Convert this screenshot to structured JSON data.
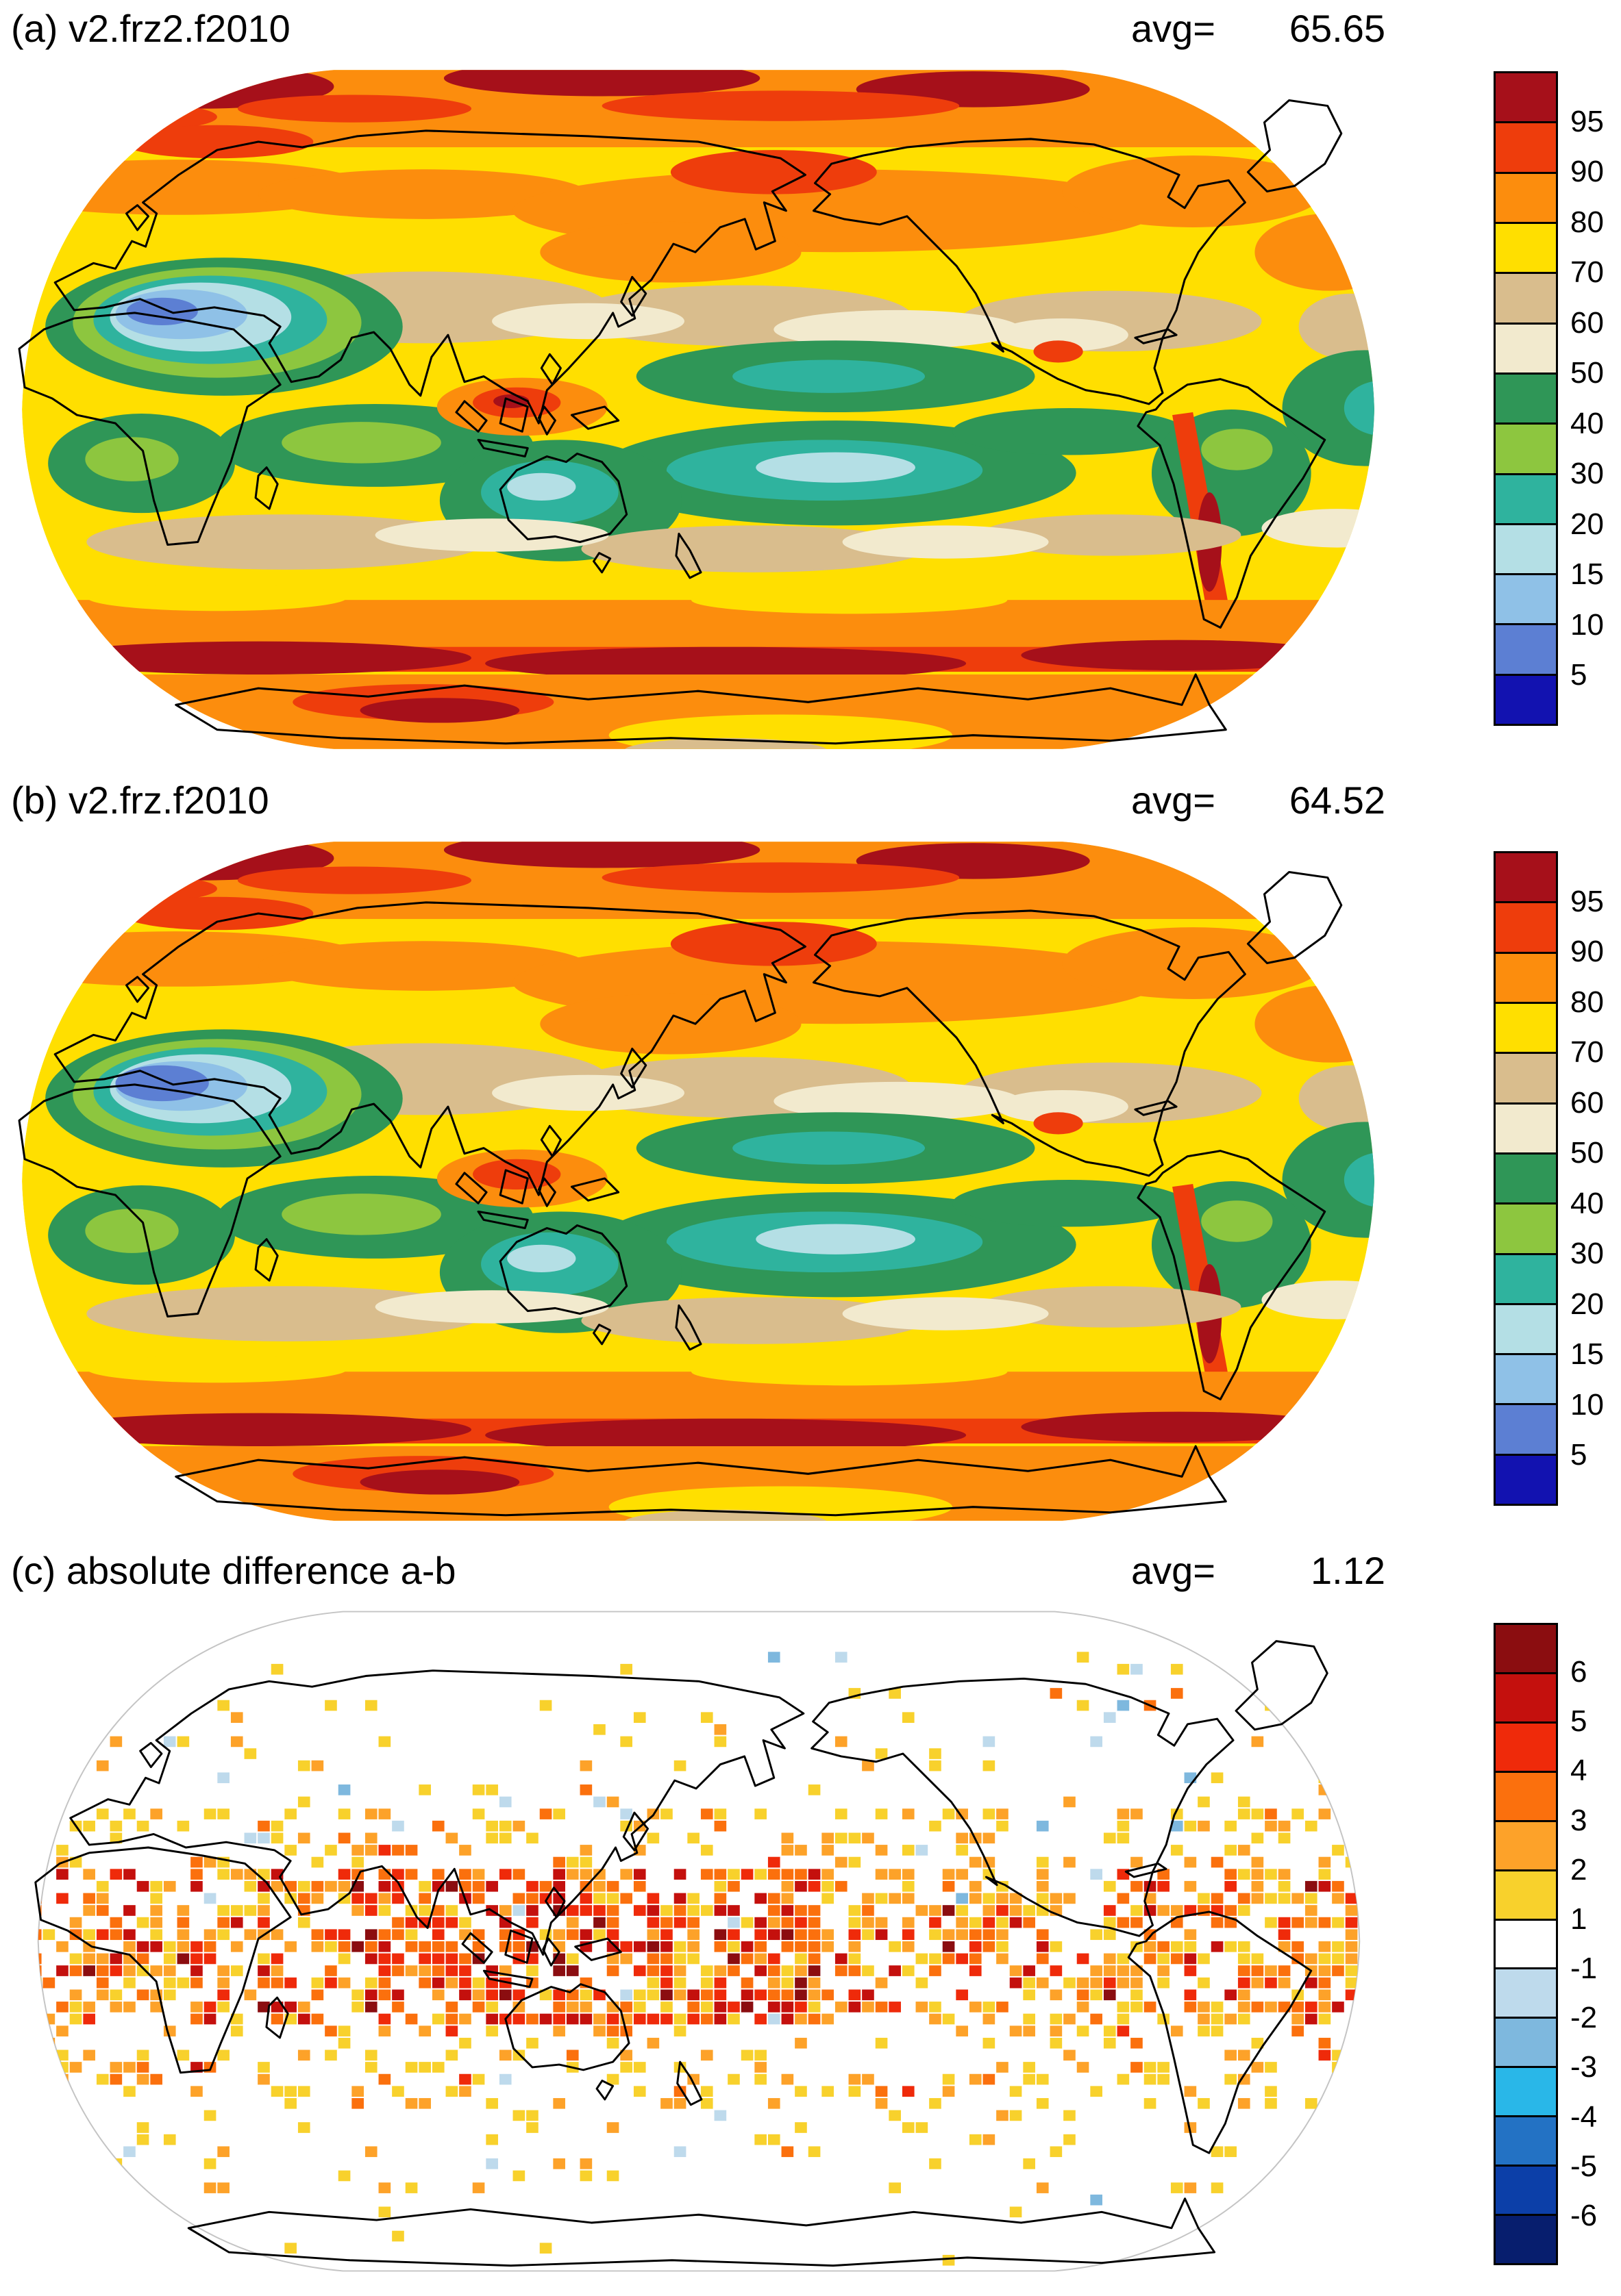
{
  "figure": {
    "background": "#FFFFFF",
    "panels": [
      {
        "id": "a",
        "title": "(a) v2.frz2.f2010",
        "avg_label": "avg=",
        "avg_value": "65.65",
        "colorbar": {
          "ticks": [
            "95",
            "90",
            "80",
            "70",
            "60",
            "50",
            "40",
            "30",
            "20",
            "15",
            "10",
            "5"
          ],
          "colors": [
            "#A6101A",
            "#EE3D0C",
            "#FC8D0D",
            "#FFDF00",
            "#D9BD8D",
            "#F2EACE",
            "#2F9657",
            "#8DC63F",
            "#2FB39E",
            "#B4DFE5",
            "#8FC1E7",
            "#5C7FD3",
            "#1212B0"
          ]
        }
      },
      {
        "id": "b",
        "title": "(b) v2.frz.f2010",
        "avg_label": "avg=",
        "avg_value": "64.52",
        "colorbar": {
          "ticks": [
            "95",
            "90",
            "80",
            "70",
            "60",
            "50",
            "40",
            "30",
            "20",
            "15",
            "10",
            "5"
          ],
          "colors": [
            "#A6101A",
            "#EE3D0C",
            "#FC8D0D",
            "#FFDF00",
            "#D9BD8D",
            "#F2EACE",
            "#2F9657",
            "#8DC63F",
            "#2FB39E",
            "#B4DFE5",
            "#8FC1E7",
            "#5C7FD3",
            "#1212B0"
          ]
        }
      },
      {
        "id": "c",
        "title": "(c) absolute difference a-b",
        "avg_label": "avg=",
        "avg_value": "1.12",
        "colorbar": {
          "ticks": [
            "6",
            "5",
            "4",
            "3",
            "2",
            "1",
            "-1",
            "-2",
            "-3",
            "-4",
            "-5",
            "-6"
          ],
          "colors": [
            "#8B0D10",
            "#C4100D",
            "#EF2A0A",
            "#FB700D",
            "#FDA229",
            "#F8D12C",
            "#FFFFFF",
            "#BEDAEC",
            "#7EB8DE",
            "#29B7E8",
            "#2372C4",
            "#0C3FA8",
            "#071E6E"
          ]
        }
      }
    ]
  },
  "chart_data": [
    {
      "type": "heatmap",
      "panel": "a",
      "title": "(a) v2.frz2.f2010",
      "statistic": {
        "label": "avg=",
        "value": 65.65
      },
      "projection": "robinson-global",
      "legend_position": "right",
      "levels": [
        5,
        10,
        15,
        20,
        30,
        40,
        50,
        60,
        70,
        80,
        90,
        95
      ],
      "palette_high_to_low": [
        "#A6101A",
        "#EE3D0C",
        "#FC8D0D",
        "#FFDF00",
        "#D9BD8D",
        "#F2EACE",
        "#2F9657",
        "#8DC63F",
        "#2FB39E",
        "#B4DFE5",
        "#8FC1E7",
        "#5C7FD3",
        "#1212B0"
      ],
      "pattern_summary": "High values (>90, dark reds) over the Arctic, northern high-latitude oceans and a circumpolar Southern Ocean band near 60S; 60-90 (yellow/orange) across mid-latitudes; 50-70 (tan/cream) in the subtropics; 30-50 (greens/teal) over the equatorial Indian and central Pacific Oceans, Australia, tropical Africa, South America and the tropical Atlantic; minimum (5-20, blues) centered on the Sahara/Arabian Peninsula; local orange-red maximum over the Maritime Continent and along the Andes."
    },
    {
      "type": "heatmap",
      "panel": "b",
      "title": "(b) v2.frz.f2010",
      "statistic": {
        "label": "avg=",
        "value": 64.52
      },
      "projection": "robinson-global",
      "legend_position": "right",
      "levels": [
        5,
        10,
        15,
        20,
        30,
        40,
        50,
        60,
        70,
        80,
        90,
        95
      ],
      "palette_high_to_low": [
        "#A6101A",
        "#EE3D0C",
        "#FC8D0D",
        "#FFDF00",
        "#D9BD8D",
        "#F2EACE",
        "#2F9657",
        "#8DC63F",
        "#2FB39E",
        "#B4DFE5",
        "#8FC1E7",
        "#5C7FD3",
        "#1212B0"
      ],
      "pattern_summary": "Spatial pattern nearly identical to panel (a) with a slightly lower global average; the blue minimum over North Africa/Arabia is marginally broader and the Maritime Continent maximum slightly weaker."
    },
    {
      "type": "heatmap",
      "panel": "c",
      "title": "(c) absolute difference a-b",
      "statistic": {
        "label": "avg=",
        "value": 1.12
      },
      "projection": "robinson-global",
      "legend_position": "right",
      "levels": [
        -6,
        -5,
        -4,
        -3,
        -2,
        -1,
        1,
        2,
        3,
        4,
        5,
        6
      ],
      "palette_high_to_low": [
        "#8B0D10",
        "#C4100D",
        "#EF2A0A",
        "#FB700D",
        "#FDA229",
        "#F8D12C",
        "#FFFFFF",
        "#BEDAEC",
        "#7EB8DE",
        "#29B7E8",
        "#2372C4",
        "#0C3FA8",
        "#071E6E"
      ],
      "pattern_summary": "Differences mostly below 1 (white) at mid and high latitudes; scattered 1-3 (yellow/orange) cells throughout the tropics and subtropics; largest values 4 to >6 (reds) concentrated over the Maritime Continent and western-central equatorial Pacific with a secondary band over tropical South America/Atlantic; a few isolated pale-blue (negative) cells at northern mid latitudes."
    }
  ]
}
